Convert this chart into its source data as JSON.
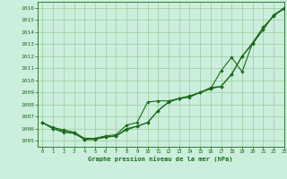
{
  "background_color": "#cceedd",
  "grid_color": "#99cc99",
  "line_color": "#1a6b1a",
  "xlabel": "Graphe pression niveau de la mer (hPa)",
  "xlim": [
    -0.5,
    23
  ],
  "ylim": [
    1004.5,
    1016.5
  ],
  "yticks": [
    1005,
    1006,
    1007,
    1008,
    1009,
    1010,
    1011,
    1012,
    1013,
    1014,
    1015,
    1016
  ],
  "xticks": [
    0,
    1,
    2,
    3,
    4,
    5,
    6,
    7,
    8,
    9,
    10,
    11,
    12,
    13,
    14,
    15,
    16,
    17,
    18,
    19,
    20,
    21,
    22,
    23
  ],
  "series": [
    [
      1006.5,
      1006.0,
      1005.8,
      1005.7,
      1005.1,
      1005.1,
      1005.3,
      1005.4,
      1005.9,
      1006.2,
      1006.5,
      1007.5,
      1008.2,
      1008.5,
      1008.6,
      1009.0,
      1009.3,
      1009.5,
      1010.5,
      1012.0,
      1013.0,
      1014.2,
      1015.4,
      1015.9
    ],
    [
      1006.5,
      1006.0,
      1005.7,
      1005.6,
      1005.1,
      1005.2,
      1005.4,
      1005.5,
      1006.3,
      1006.5,
      1008.2,
      1008.3,
      1008.3,
      1008.5,
      1008.7,
      1009.0,
      1009.3,
      1010.8,
      1011.9,
      1010.7,
      1013.1,
      1014.4,
      1015.3,
      1016.0
    ],
    [
      1006.5,
      1006.1,
      1005.9,
      1005.7,
      1005.2,
      1005.2,
      1005.3,
      1005.4,
      1006.0,
      1006.2,
      1006.5,
      1007.5,
      1008.2,
      1008.5,
      1008.7,
      1009.0,
      1009.4,
      1009.5,
      1010.5,
      1012.0,
      1013.1,
      1014.2,
      1015.4,
      1016.0
    ]
  ],
  "figsize": [
    3.2,
    2.0
  ],
  "dpi": 100
}
